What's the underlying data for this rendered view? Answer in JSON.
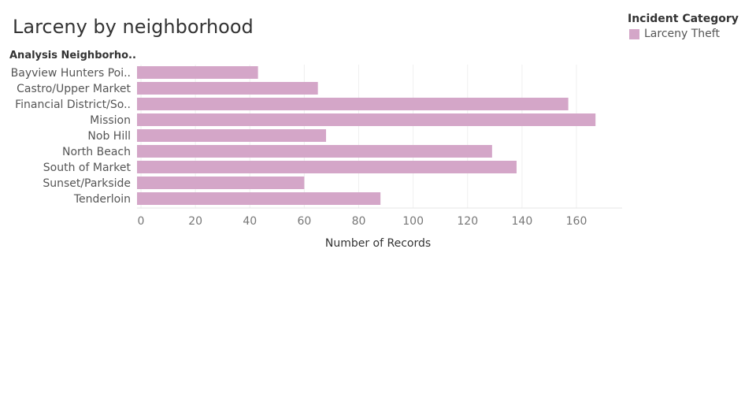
{
  "title": "Larceny by neighborhood",
  "legend": {
    "title": "Incident Category",
    "items": [
      {
        "label": "Larceny Theft",
        "color": "#d4a6c8"
      }
    ]
  },
  "row_header": "Analysis Neighborho..",
  "chart_data": {
    "type": "bar",
    "orientation": "horizontal",
    "categories": [
      "Bayview Hunters Poi..",
      "Castro/Upper Market",
      "Financial District/So..",
      "Mission",
      "Nob Hill",
      "North Beach",
      "South of Market",
      "Sunset/Parkside",
      "Tenderloin"
    ],
    "series": [
      {
        "name": "Larceny Theft",
        "values": [
          43,
          65,
          157,
          167,
          68,
          129,
          138,
          60,
          88
        ],
        "color": "#d4a6c8"
      }
    ],
    "xlabel": "Number of Records",
    "ylabel": "Analysis Neighborho..",
    "xlim": [
      0,
      175
    ],
    "xticks": [
      0,
      20,
      40,
      60,
      80,
      100,
      120,
      140,
      160
    ],
    "grid": true,
    "legend_position": "top-right"
  }
}
